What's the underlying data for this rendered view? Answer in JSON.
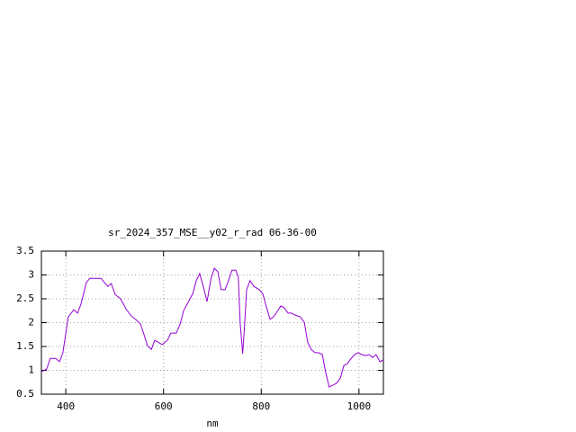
{
  "chart_data": {
    "type": "line",
    "title": "sr_2024_357_MSE__y02_r_rad 06-36-00",
    "xlabel": "nm",
    "xlim": [
      350,
      1050
    ],
    "xticks": [
      400,
      600,
      800,
      1000
    ],
    "ylim": [
      0.5,
      3.5
    ],
    "yticks": [
      3.5,
      3,
      2.5,
      2,
      1.5,
      1,
      0.5
    ],
    "grid": true,
    "series": [
      {
        "color": "#9400d3",
        "x": [
          350,
          361,
          368,
          379,
          387,
          394,
          400,
          405,
          416,
          424,
          431,
          442,
          449,
          472,
          479,
          486,
          493,
          501,
          512,
          523,
          534,
          545,
          553,
          560,
          567,
          575,
          582,
          589,
          597,
          608,
          615,
          626,
          634,
          641,
          652,
          660,
          667,
          674,
          682,
          689,
          697,
          704,
          711,
          718,
          726,
          733,
          740,
          748,
          753,
          757,
          762,
          766,
          770,
          777,
          785,
          796,
          803,
          810,
          818,
          825,
          833,
          840,
          847,
          855,
          862,
          869,
          880,
          888,
          895,
          902,
          910,
          917,
          925,
          932,
          939,
          947,
          954,
          962,
          969,
          976,
          984,
          991,
          998,
          1006,
          1013,
          1021,
          1028,
          1035,
          1043,
          1050
        ],
        "values": [
          0.97,
          1.03,
          1.25,
          1.25,
          1.18,
          1.37,
          1.78,
          2.12,
          2.27,
          2.2,
          2.39,
          2.84,
          2.93,
          2.93,
          2.84,
          2.76,
          2.82,
          2.59,
          2.5,
          2.29,
          2.14,
          2.05,
          1.97,
          1.75,
          1.52,
          1.44,
          1.63,
          1.59,
          1.54,
          1.63,
          1.78,
          1.78,
          1.97,
          2.25,
          2.46,
          2.61,
          2.88,
          3.03,
          2.73,
          2.44,
          2.92,
          3.14,
          3.07,
          2.69,
          2.69,
          2.88,
          3.1,
          3.1,
          2.95,
          1.97,
          1.35,
          1.97,
          2.69,
          2.88,
          2.76,
          2.69,
          2.61,
          2.35,
          2.07,
          2.12,
          2.24,
          2.35,
          2.31,
          2.2,
          2.2,
          2.16,
          2.12,
          2.01,
          1.59,
          1.44,
          1.37,
          1.37,
          1.33,
          0.95,
          0.65,
          0.69,
          0.73,
          0.84,
          1.1,
          1.14,
          1.25,
          1.33,
          1.37,
          1.33,
          1.31,
          1.33,
          1.27,
          1.33,
          1.18,
          1.22
        ]
      }
    ]
  }
}
